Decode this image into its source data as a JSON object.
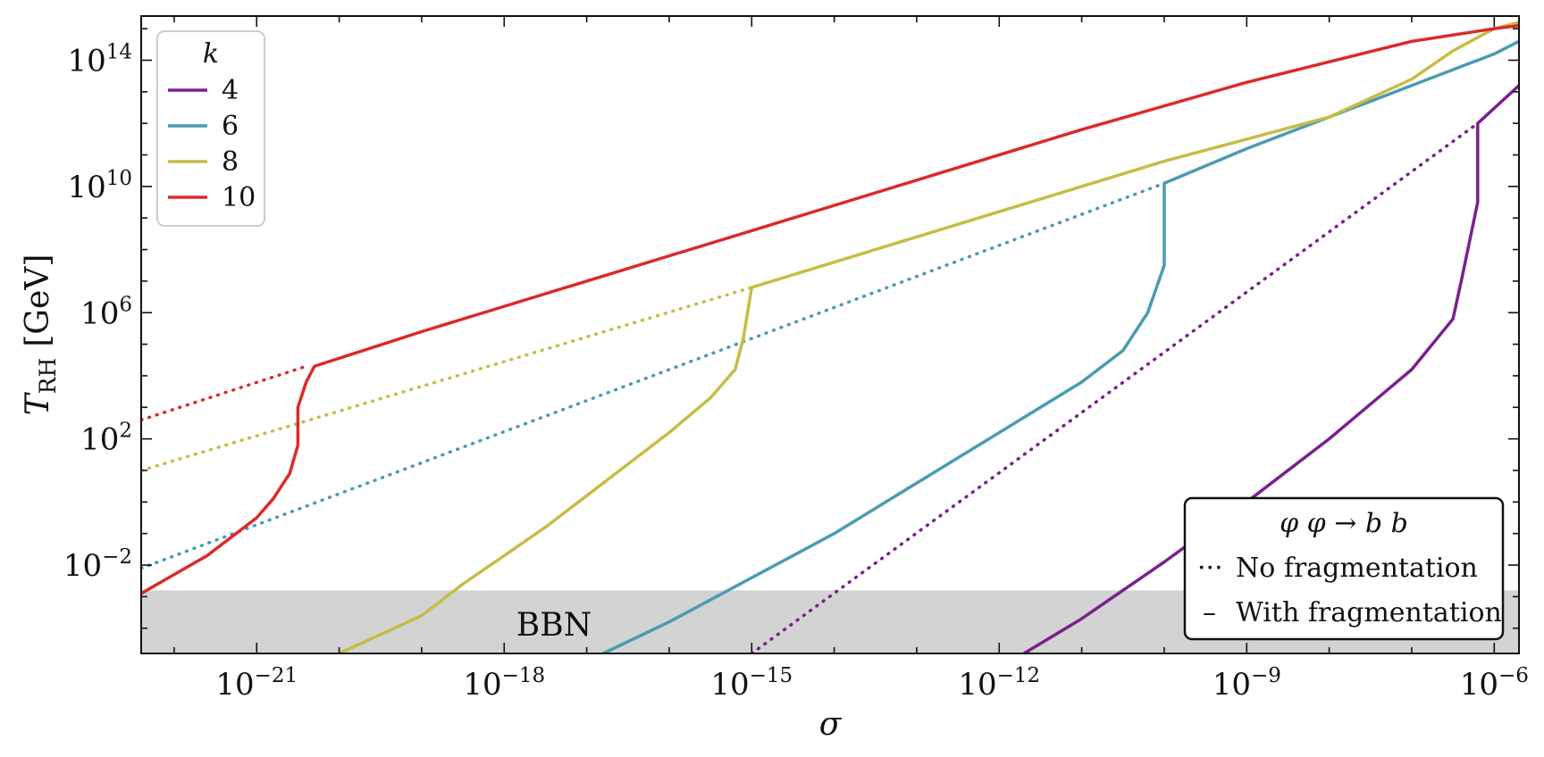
{
  "chart_data": {
    "type": "line",
    "xlabel": "σ",
    "ylabel_main": "T",
    "ylabel_sub": "RH",
    "ylabel_unit": "[GeV]",
    "x_scale": "log",
    "y_scale": "log",
    "xlim_log10": [
      -22.4,
      -5.7
    ],
    "ylim_log10": [
      -4.8,
      15.4
    ],
    "x_ticks": [
      {
        "exp": -21,
        "base": "10",
        "sup": "−21"
      },
      {
        "exp": -18,
        "base": "10",
        "sup": "−18"
      },
      {
        "exp": -15,
        "base": "10",
        "sup": "−15"
      },
      {
        "exp": -12,
        "base": "10",
        "sup": "−12"
      },
      {
        "exp": -9,
        "base": "10",
        "sup": "−9"
      },
      {
        "exp": -6,
        "base": "10",
        "sup": "−6"
      }
    ],
    "y_ticks": [
      {
        "exp": -2,
        "base": "10",
        "sup": "−2"
      },
      {
        "exp": 2,
        "base": "10",
        "sup": "2"
      },
      {
        "exp": 6,
        "base": "10",
        "sup": "6"
      },
      {
        "exp": 10,
        "base": "10",
        "sup": "10"
      },
      {
        "exp": 14,
        "base": "10",
        "sup": "14"
      }
    ],
    "bbn_region": {
      "label": "BBN",
      "y_max_log10": -2.8,
      "color": "#d3d3d3"
    },
    "legend_k": {
      "title": "k",
      "placement": "upper-left",
      "entries": [
        {
          "label": "4",
          "color": "#7b1f8f"
        },
        {
          "label": "6",
          "color": "#4a9bb3"
        },
        {
          "label": "8",
          "color": "#c7bc45"
        },
        {
          "label": "10",
          "color": "#dc2a28"
        }
      ]
    },
    "legend_style": {
      "title": "φ φ → b b",
      "placement": "lower-right",
      "entries": [
        {
          "symbol": "···",
          "label": "No fragmentation",
          "dash": "dotted"
        },
        {
          "symbol": "–",
          "label": "With fragmentation",
          "dash": "solid"
        }
      ]
    },
    "series": [
      {
        "k": "4",
        "kind": "no fragmentation",
        "color": "#7b1f8f",
        "dash": "dotted",
        "points_log10": [
          [
            -15.0,
            -4.8
          ],
          [
            -6.2,
            12.0
          ]
        ]
      },
      {
        "k": "4",
        "kind": "with fragmentation",
        "color": "#7b1f8f",
        "dash": "solid",
        "points_log10": [
          [
            -11.7,
            -4.8
          ],
          [
            -11.0,
            -3.7
          ],
          [
            -10.0,
            -1.9
          ],
          [
            -9.0,
            0.0
          ],
          [
            -8.0,
            2.0
          ],
          [
            -7.0,
            4.2
          ],
          [
            -6.5,
            5.8
          ],
          [
            -6.4,
            7.0
          ],
          [
            -6.2,
            9.5
          ],
          [
            -6.2,
            12.0
          ],
          [
            -5.7,
            13.2
          ]
        ]
      },
      {
        "k": "6",
        "kind": "no fragmentation",
        "color": "#4a9bb3",
        "dash": "dotted",
        "points_log10": [
          [
            -22.4,
            -2.1
          ],
          [
            -10.0,
            10.1
          ]
        ]
      },
      {
        "k": "6",
        "kind": "with fragmentation",
        "color": "#4a9bb3",
        "dash": "solid",
        "points_log10": [
          [
            -16.8,
            -4.8
          ],
          [
            -16.0,
            -3.8
          ],
          [
            -15.0,
            -2.4
          ],
          [
            -14.0,
            -1.0
          ],
          [
            -13.0,
            0.6
          ],
          [
            -12.0,
            2.2
          ],
          [
            -11.0,
            3.8
          ],
          [
            -10.5,
            4.8
          ],
          [
            -10.2,
            6.0
          ],
          [
            -10.0,
            7.5
          ],
          [
            -10.0,
            10.1
          ],
          [
            -9.0,
            11.2
          ],
          [
            -8.0,
            12.2
          ],
          [
            -7.0,
            13.2
          ],
          [
            -6.0,
            14.2
          ],
          [
            -5.7,
            14.6
          ]
        ]
      },
      {
        "k": "8",
        "kind": "no fragmentation",
        "color": "#c7bc45",
        "dash": "dotted",
        "points_log10": [
          [
            -22.4,
            1.0
          ],
          [
            -15.0,
            6.8
          ]
        ]
      },
      {
        "k": "8",
        "kind": "with fragmentation",
        "color": "#c7bc45",
        "dash": "solid",
        "points_log10": [
          [
            -20.0,
            -4.8
          ],
          [
            -19.5,
            -4.2
          ],
          [
            -19.0,
            -3.6
          ],
          [
            -18.5,
            -2.6
          ],
          [
            -18.0,
            -1.7
          ],
          [
            -17.5,
            -0.8
          ],
          [
            -17.0,
            0.2
          ],
          [
            -16.5,
            1.2
          ],
          [
            -16.0,
            2.2
          ],
          [
            -15.5,
            3.3
          ],
          [
            -15.2,
            4.2
          ],
          [
            -15.1,
            5.2
          ],
          [
            -15.0,
            6.8
          ],
          [
            -14.0,
            7.6
          ],
          [
            -12.0,
            9.2
          ],
          [
            -10.0,
            10.8
          ],
          [
            -8.0,
            12.2
          ],
          [
            -7.0,
            13.4
          ],
          [
            -6.5,
            14.3
          ],
          [
            -6.0,
            15.0
          ],
          [
            -5.7,
            15.2
          ]
        ]
      },
      {
        "k": "10",
        "kind": "no fragmentation",
        "color": "#dc2a28",
        "dash": "dotted",
        "points_log10": [
          [
            -22.4,
            2.6
          ],
          [
            -20.4,
            4.3
          ]
        ]
      },
      {
        "k": "10",
        "kind": "with fragmentation",
        "color": "#dc2a28",
        "dash": "solid",
        "points_log10": [
          [
            -22.4,
            -2.9
          ],
          [
            -22.0,
            -2.3
          ],
          [
            -21.6,
            -1.7
          ],
          [
            -21.3,
            -1.1
          ],
          [
            -21.0,
            -0.5
          ],
          [
            -20.8,
            0.1
          ],
          [
            -20.6,
            0.9
          ],
          [
            -20.5,
            1.8
          ],
          [
            -20.5,
            3.0
          ],
          [
            -20.4,
            3.8
          ],
          [
            -20.3,
            4.3
          ],
          [
            -19.0,
            5.4
          ],
          [
            -17.0,
            7.0
          ],
          [
            -15.0,
            8.6
          ],
          [
            -13.0,
            10.2
          ],
          [
            -11.0,
            11.8
          ],
          [
            -9.0,
            13.3
          ],
          [
            -7.0,
            14.6
          ],
          [
            -6.0,
            15.0
          ],
          [
            -5.7,
            15.1
          ]
        ]
      }
    ]
  }
}
